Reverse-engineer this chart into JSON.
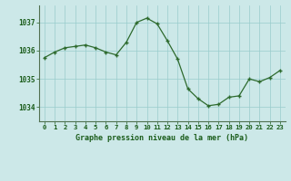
{
  "x": [
    0,
    1,
    2,
    3,
    4,
    5,
    6,
    7,
    8,
    9,
    10,
    11,
    12,
    13,
    14,
    15,
    16,
    17,
    18,
    19,
    20,
    21,
    22,
    23
  ],
  "y": [
    1035.75,
    1035.95,
    1036.1,
    1036.15,
    1036.2,
    1036.1,
    1035.95,
    1035.85,
    1036.3,
    1037.0,
    1037.15,
    1036.95,
    1036.35,
    1035.7,
    1034.65,
    1034.3,
    1034.05,
    1034.1,
    1034.35,
    1034.4,
    1035.0,
    1034.9,
    1035.05,
    1035.3
  ],
  "line_color": "#2d6a2d",
  "marker_color": "#2d6a2d",
  "bg_color": "#cce8e8",
  "grid_color": "#99cccc",
  "axis_label_color": "#1a5c1a",
  "tick_label_color": "#1a5c1a",
  "xlabel": "Graphe pression niveau de la mer (hPa)",
  "ylim": [
    1033.5,
    1037.6
  ],
  "yticks": [
    1034,
    1035,
    1036,
    1037
  ],
  "xticks": [
    0,
    1,
    2,
    3,
    4,
    5,
    6,
    7,
    8,
    9,
    10,
    11,
    12,
    13,
    14,
    15,
    16,
    17,
    18,
    19,
    20,
    21,
    22,
    23
  ]
}
